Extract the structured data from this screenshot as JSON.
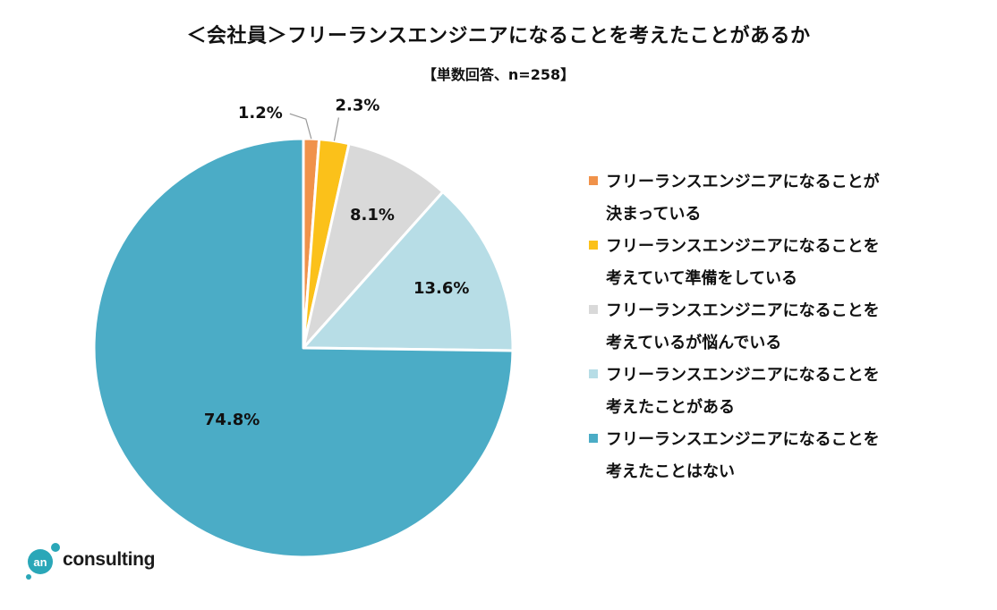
{
  "colors": {
    "background": "#ffffff",
    "leader_line": "#999999",
    "slice_border": "#ffffff",
    "logo_teal": "#2aa7b8"
  },
  "chart_data": {
    "type": "pie",
    "title": "＜会社員＞フリーランスエンジニアになることを考えたことがあるか",
    "subtitle": "【単数回答、n=258】",
    "start_angle_deg": 0,
    "direction": "clockwise",
    "legend_position": "right",
    "slices": [
      {
        "label": "フリーランスエンジニアになることが\n決まっている",
        "value": 1.2,
        "value_label": "1.2%",
        "color": "#f0924a",
        "label_placement": "outside"
      },
      {
        "label": "フリーランスエンジニアになることを\n考えていて準備をしている",
        "value": 2.3,
        "value_label": "2.3%",
        "color": "#fbc11a",
        "label_placement": "outside"
      },
      {
        "label": "フリーランスエンジニアになることを\n考えているが悩んでいる",
        "value": 8.1,
        "value_label": "8.1%",
        "color": "#d9d9d9",
        "label_placement": "inside"
      },
      {
        "label": "フリーランスエンジニアになることを\n考えたことがある",
        "value": 13.6,
        "value_label": "13.6%",
        "color": "#b7dde6",
        "label_placement": "inside"
      },
      {
        "label": "フリーランスエンジニアになることを\n考えたことはない",
        "value": 74.8,
        "value_label": "74.8%",
        "color": "#4bacc6",
        "label_placement": "inside"
      }
    ]
  },
  "logo": {
    "mark": "an",
    "text": "consulting"
  }
}
